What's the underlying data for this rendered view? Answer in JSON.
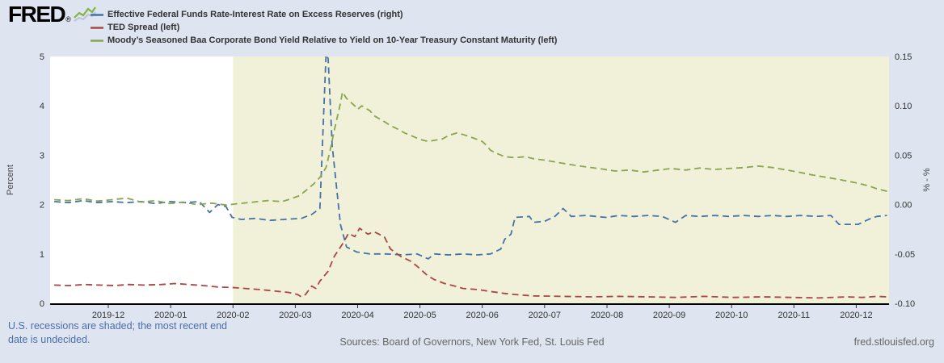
{
  "header": {
    "logo_text": "FRED",
    "logo_registered": "®"
  },
  "legend": {
    "items": [
      {
        "label": "Effective Federal Funds Rate-Interest Rate on Excess Reserves (right)",
        "color": "#4572a7"
      },
      {
        "label": "TED Spread (left)",
        "color": "#aa4643"
      },
      {
        "label": "Moody’s Seasoned Baa Corporate Bond Yield Relative to Yield on 10-Year Treasury Constant Maturity (left)",
        "color": "#89a54e"
      }
    ]
  },
  "footer": {
    "recession_note": "U.S. recessions are shaded; the most recent end date is undecided.",
    "sources": "Sources: Board of Governors, New York Fed, St. Louis Fed",
    "site_link": "fred.stlouisfed.org"
  },
  "colors": {
    "page_bg": "#dee4f0",
    "plot_bg": "#ffffff",
    "recession_band": "#f1f1da",
    "axis_text": "#333333",
    "footer_text": "#666666",
    "note_blue": "#4a6ea9",
    "logo_icon_green": "#86b343",
    "logo_icon_gray": "#b9c4d4"
  },
  "chart_data": {
    "type": "line",
    "x_axis": {
      "domain": [
        "2019-11-03",
        "2020-12-17"
      ],
      "ticks": [
        "2019-12",
        "2020-01",
        "2020-02",
        "2020-03",
        "2020-04",
        "2020-05",
        "2020-06",
        "2020-07",
        "2020-08",
        "2020-09",
        "2020-10",
        "2020-11",
        "2020-12"
      ]
    },
    "left_axis": {
      "label": "Percent",
      "min": 0,
      "max": 5,
      "ticks": [
        5,
        4,
        3,
        2,
        1,
        0
      ]
    },
    "right_axis": {
      "label": "% - %",
      "min": -0.1,
      "max": 0.15,
      "ticks": [
        "0.15",
        "0.10",
        "0.05",
        "0.00",
        "-0.05",
        "-0.10"
      ]
    },
    "recession_shading": {
      "start": "2020-02-01",
      "end": "2020-12-17"
    },
    "series": [
      {
        "id": "effr-ioer",
        "name": "Effective Federal Funds Rate-Interest Rate on Excess Reserves",
        "axis": "right",
        "color": "#4572a7",
        "points": [
          [
            "2019-11-05",
            0.003
          ],
          [
            "2019-11-12",
            0.002
          ],
          [
            "2019-11-19",
            0.004
          ],
          [
            "2019-11-26",
            0.002
          ],
          [
            "2019-12-03",
            0.003
          ],
          [
            "2019-12-10",
            0.002
          ],
          [
            "2019-12-17",
            0.003
          ],
          [
            "2019-12-24",
            0.001
          ],
          [
            "2019-12-31",
            0.003
          ],
          [
            "2020-01-08",
            0.002
          ],
          [
            "2020-01-15",
            0.003
          ],
          [
            "2020-01-20",
            -0.008
          ],
          [
            "2020-01-24",
            0.0
          ],
          [
            "2020-01-28",
            -0.002
          ],
          [
            "2020-01-31",
            -0.013
          ],
          [
            "2020-02-05",
            -0.015
          ],
          [
            "2020-02-12",
            -0.014
          ],
          [
            "2020-02-19",
            -0.016
          ],
          [
            "2020-02-26",
            -0.015
          ],
          [
            "2020-03-04",
            -0.014
          ],
          [
            "2020-03-09",
            -0.01
          ],
          [
            "2020-03-13",
            -0.004
          ],
          [
            "2020-03-16",
            0.152
          ],
          [
            "2020-03-17",
            0.148
          ],
          [
            "2020-03-19",
            0.06
          ],
          [
            "2020-03-23",
            -0.02
          ],
          [
            "2020-03-26",
            -0.043
          ],
          [
            "2020-03-31",
            -0.048
          ],
          [
            "2020-04-07",
            -0.05
          ],
          [
            "2020-04-15",
            -0.05
          ],
          [
            "2020-04-23",
            -0.051
          ],
          [
            "2020-04-30",
            -0.05
          ],
          [
            "2020-05-05",
            -0.055
          ],
          [
            "2020-05-08",
            -0.05
          ],
          [
            "2020-05-15",
            -0.051
          ],
          [
            "2020-05-22",
            -0.05
          ],
          [
            "2020-05-29",
            -0.051
          ],
          [
            "2020-06-05",
            -0.05
          ],
          [
            "2020-06-10",
            -0.045
          ],
          [
            "2020-06-12",
            -0.035
          ],
          [
            "2020-06-15",
            -0.03
          ],
          [
            "2020-06-17",
            -0.013
          ],
          [
            "2020-06-24",
            -0.012
          ],
          [
            "2020-06-26",
            -0.018
          ],
          [
            "2020-07-01",
            -0.017
          ],
          [
            "2020-07-06",
            -0.012
          ],
          [
            "2020-07-10",
            -0.004
          ],
          [
            "2020-07-14",
            -0.012
          ],
          [
            "2020-07-21",
            -0.011
          ],
          [
            "2020-07-31",
            -0.013
          ],
          [
            "2020-08-07",
            -0.011
          ],
          [
            "2020-08-14",
            -0.012
          ],
          [
            "2020-08-21",
            -0.011
          ],
          [
            "2020-08-28",
            -0.012
          ],
          [
            "2020-09-04",
            -0.018
          ],
          [
            "2020-09-09",
            -0.011
          ],
          [
            "2020-09-16",
            -0.012
          ],
          [
            "2020-09-23",
            -0.011
          ],
          [
            "2020-09-30",
            -0.012
          ],
          [
            "2020-10-07",
            -0.011
          ],
          [
            "2020-10-14",
            -0.012
          ],
          [
            "2020-10-21",
            -0.011
          ],
          [
            "2020-10-28",
            -0.012
          ],
          [
            "2020-11-04",
            -0.011
          ],
          [
            "2020-11-12",
            -0.012
          ],
          [
            "2020-11-19",
            -0.011
          ],
          [
            "2020-11-23",
            -0.02
          ],
          [
            "2020-12-02",
            -0.02
          ],
          [
            "2020-12-07",
            -0.015
          ],
          [
            "2020-12-11",
            -0.012
          ],
          [
            "2020-12-16",
            -0.011
          ]
        ]
      },
      {
        "id": "ted-spread",
        "name": "TED Spread",
        "axis": "left",
        "color": "#aa4643",
        "points": [
          [
            "2019-11-05",
            0.37
          ],
          [
            "2019-11-12",
            0.36
          ],
          [
            "2019-11-20",
            0.38
          ],
          [
            "2019-11-27",
            0.37
          ],
          [
            "2019-12-04",
            0.36
          ],
          [
            "2019-12-11",
            0.38
          ],
          [
            "2019-12-18",
            0.37
          ],
          [
            "2019-12-27",
            0.38
          ],
          [
            "2020-01-03",
            0.4
          ],
          [
            "2020-01-10",
            0.38
          ],
          [
            "2020-01-17",
            0.36
          ],
          [
            "2020-01-24",
            0.33
          ],
          [
            "2020-01-31",
            0.32
          ],
          [
            "2020-02-07",
            0.3
          ],
          [
            "2020-02-14",
            0.28
          ],
          [
            "2020-02-21",
            0.25
          ],
          [
            "2020-02-28",
            0.22
          ],
          [
            "2020-03-02",
            0.18
          ],
          [
            "2020-03-04",
            0.13
          ],
          [
            "2020-03-06",
            0.18
          ],
          [
            "2020-03-09",
            0.35
          ],
          [
            "2020-03-11",
            0.3
          ],
          [
            "2020-03-13",
            0.45
          ],
          [
            "2020-03-17",
            0.65
          ],
          [
            "2020-03-20",
            0.95
          ],
          [
            "2020-03-24",
            1.2
          ],
          [
            "2020-03-27",
            1.42
          ],
          [
            "2020-03-30",
            1.35
          ],
          [
            "2020-04-02",
            1.52
          ],
          [
            "2020-04-06",
            1.4
          ],
          [
            "2020-04-09",
            1.45
          ],
          [
            "2020-04-14",
            1.35
          ],
          [
            "2020-04-17",
            1.1
          ],
          [
            "2020-04-22",
            0.95
          ],
          [
            "2020-04-27",
            0.85
          ],
          [
            "2020-04-30",
            0.75
          ],
          [
            "2020-05-05",
            0.55
          ],
          [
            "2020-05-08",
            0.48
          ],
          [
            "2020-05-13",
            0.4
          ],
          [
            "2020-05-18",
            0.35
          ],
          [
            "2020-05-22",
            0.3
          ],
          [
            "2020-05-29",
            0.28
          ],
          [
            "2020-06-05",
            0.24
          ],
          [
            "2020-06-12",
            0.2
          ],
          [
            "2020-06-19",
            0.17
          ],
          [
            "2020-06-26",
            0.15
          ],
          [
            "2020-07-10",
            0.14
          ],
          [
            "2020-07-24",
            0.13
          ],
          [
            "2020-08-07",
            0.14
          ],
          [
            "2020-08-21",
            0.13
          ],
          [
            "2020-09-04",
            0.12
          ],
          [
            "2020-09-18",
            0.14
          ],
          [
            "2020-10-02",
            0.12
          ],
          [
            "2020-10-16",
            0.13
          ],
          [
            "2020-10-30",
            0.12
          ],
          [
            "2020-11-13",
            0.11
          ],
          [
            "2020-11-27",
            0.13
          ],
          [
            "2020-12-04",
            0.12
          ],
          [
            "2020-12-11",
            0.14
          ],
          [
            "2020-12-16",
            0.13
          ]
        ]
      },
      {
        "id": "baa-treasury",
        "name": "Moody’s Seasoned Baa Corporate Bond Yield Relative to Yield on 10-Year Treasury Constant Maturity",
        "axis": "left",
        "color": "#89a54e",
        "points": [
          [
            "2019-11-05",
            2.1
          ],
          [
            "2019-11-12",
            2.08
          ],
          [
            "2019-11-19",
            2.12
          ],
          [
            "2019-11-26",
            2.07
          ],
          [
            "2019-12-03",
            2.1
          ],
          [
            "2019-12-10",
            2.13
          ],
          [
            "2019-12-17",
            2.05
          ],
          [
            "2019-12-24",
            2.08
          ],
          [
            "2019-12-31",
            2.02
          ],
          [
            "2020-01-07",
            2.05
          ],
          [
            "2020-01-14",
            2.0
          ],
          [
            "2020-01-21",
            2.03
          ],
          [
            "2020-01-28",
            1.99
          ],
          [
            "2020-02-04",
            2.02
          ],
          [
            "2020-02-11",
            2.05
          ],
          [
            "2020-02-18",
            2.08
          ],
          [
            "2020-02-25",
            2.06
          ],
          [
            "2020-02-28",
            2.1
          ],
          [
            "2020-03-03",
            2.18
          ],
          [
            "2020-03-06",
            2.28
          ],
          [
            "2020-03-10",
            2.42
          ],
          [
            "2020-03-13",
            2.55
          ],
          [
            "2020-03-16",
            2.75
          ],
          [
            "2020-03-18",
            3.1
          ],
          [
            "2020-03-20",
            3.5
          ],
          [
            "2020-03-23",
            4.05
          ],
          [
            "2020-03-24",
            4.28
          ],
          [
            "2020-03-26",
            4.15
          ],
          [
            "2020-03-30",
            4.0
          ],
          [
            "2020-04-01",
            3.93
          ],
          [
            "2020-04-03",
            4.0
          ],
          [
            "2020-04-07",
            3.9
          ],
          [
            "2020-04-09",
            3.8
          ],
          [
            "2020-04-14",
            3.68
          ],
          [
            "2020-04-17",
            3.6
          ],
          [
            "2020-04-21",
            3.52
          ],
          [
            "2020-04-24",
            3.45
          ],
          [
            "2020-04-28",
            3.38
          ],
          [
            "2020-05-01",
            3.32
          ],
          [
            "2020-05-05",
            3.28
          ],
          [
            "2020-05-08",
            3.3
          ],
          [
            "2020-05-12",
            3.33
          ],
          [
            "2020-05-15",
            3.4
          ],
          [
            "2020-05-19",
            3.45
          ],
          [
            "2020-05-22",
            3.42
          ],
          [
            "2020-05-27",
            3.35
          ],
          [
            "2020-06-01",
            3.28
          ],
          [
            "2020-06-03",
            3.2
          ],
          [
            "2020-06-05",
            3.1
          ],
          [
            "2020-06-09",
            3.02
          ],
          [
            "2020-06-12",
            2.97
          ],
          [
            "2020-06-17",
            2.95
          ],
          [
            "2020-06-22",
            2.97
          ],
          [
            "2020-06-26",
            2.93
          ],
          [
            "2020-07-01",
            2.9
          ],
          [
            "2020-07-08",
            2.85
          ],
          [
            "2020-07-15",
            2.8
          ],
          [
            "2020-07-22",
            2.76
          ],
          [
            "2020-07-29",
            2.72
          ],
          [
            "2020-08-05",
            2.68
          ],
          [
            "2020-08-12",
            2.7
          ],
          [
            "2020-08-19",
            2.66
          ],
          [
            "2020-08-26",
            2.7
          ],
          [
            "2020-09-02",
            2.73
          ],
          [
            "2020-09-09",
            2.7
          ],
          [
            "2020-09-16",
            2.74
          ],
          [
            "2020-09-23",
            2.71
          ],
          [
            "2020-09-30",
            2.73
          ],
          [
            "2020-10-07",
            2.75
          ],
          [
            "2020-10-14",
            2.78
          ],
          [
            "2020-10-21",
            2.75
          ],
          [
            "2020-10-28",
            2.7
          ],
          [
            "2020-11-04",
            2.65
          ],
          [
            "2020-11-10",
            2.6
          ],
          [
            "2020-11-17",
            2.55
          ],
          [
            "2020-11-24",
            2.5
          ],
          [
            "2020-12-01",
            2.44
          ],
          [
            "2020-12-07",
            2.38
          ],
          [
            "2020-12-11",
            2.32
          ],
          [
            "2020-12-16",
            2.27
          ]
        ]
      }
    ]
  }
}
